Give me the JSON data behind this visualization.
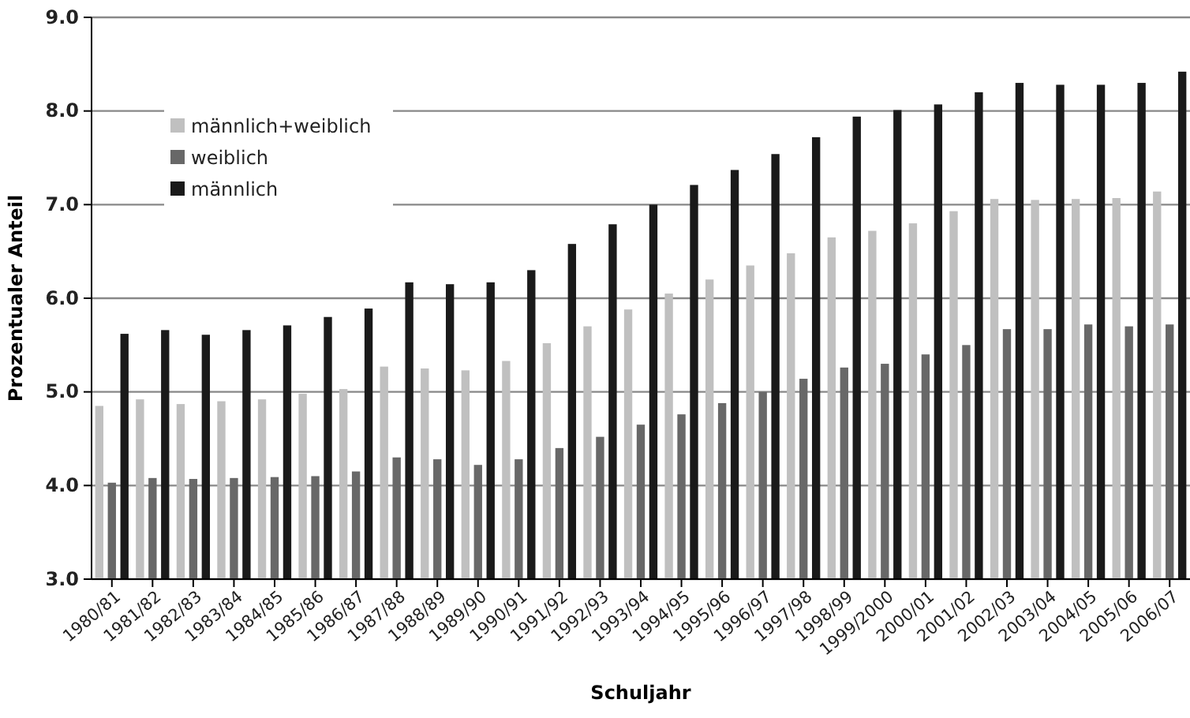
{
  "chart_data": {
    "type": "bar",
    "xlabel": "Schuljahr",
    "ylabel": "Prozentualer Anteil",
    "categories": [
      "1980/81",
      "1981/82",
      "1982/83",
      "1983/84",
      "1984/85",
      "1985/86",
      "1986/87",
      "1987/88",
      "1988/89",
      "1989/90",
      "1990/91",
      "1991/92",
      "1992/93",
      "1993/94",
      "1994/95",
      "1995/96",
      "1996/97",
      "1997/98",
      "1998/99",
      "1999/2000",
      "2000/01",
      "2001/02",
      "2002/03",
      "2003/04",
      "2004/05",
      "2005/06",
      "2006/07"
    ],
    "series": [
      {
        "name": "männlich+weiblich",
        "color": "#c0c0c0",
        "values": [
          4.85,
          4.92,
          4.87,
          4.9,
          4.92,
          4.98,
          5.03,
          5.27,
          5.25,
          5.23,
          5.33,
          5.52,
          5.7,
          5.88,
          6.05,
          6.2,
          6.35,
          6.48,
          6.65,
          6.72,
          6.8,
          6.93,
          7.06,
          7.05,
          7.06,
          7.07,
          7.14
        ]
      },
      {
        "name": "weiblich",
        "color": "#686868",
        "values": [
          4.03,
          4.08,
          4.07,
          4.08,
          4.09,
          4.1,
          4.15,
          4.3,
          4.28,
          4.22,
          4.28,
          4.4,
          4.52,
          4.65,
          4.76,
          4.88,
          5.0,
          5.14,
          5.26,
          5.3,
          5.4,
          5.5,
          5.67,
          5.67,
          5.72,
          5.7,
          5.72
        ]
      },
      {
        "name": "männlich",
        "color": "#1a1a1a",
        "values": [
          5.62,
          5.66,
          5.61,
          5.66,
          5.71,
          5.8,
          5.89,
          6.17,
          6.15,
          6.17,
          6.3,
          6.58,
          6.79,
          7.0,
          7.21,
          7.37,
          7.54,
          7.72,
          7.94,
          8.01,
          8.07,
          8.2,
          8.3,
          8.28,
          8.28,
          8.3,
          8.42
        ]
      }
    ],
    "ylim": [
      3,
      9
    ],
    "yticks": [
      {
        "value": 3,
        "label": "3.0"
      },
      {
        "value": 4,
        "label": "4.0"
      },
      {
        "value": 5,
        "label": "5.0"
      },
      {
        "value": 6,
        "label": "6.0"
      },
      {
        "value": 7,
        "label": "7.0"
      },
      {
        "value": 8,
        "label": "8.0"
      },
      {
        "value": 9,
        "label": "9.0"
      }
    ],
    "grid": "y",
    "legend": "top left"
  }
}
